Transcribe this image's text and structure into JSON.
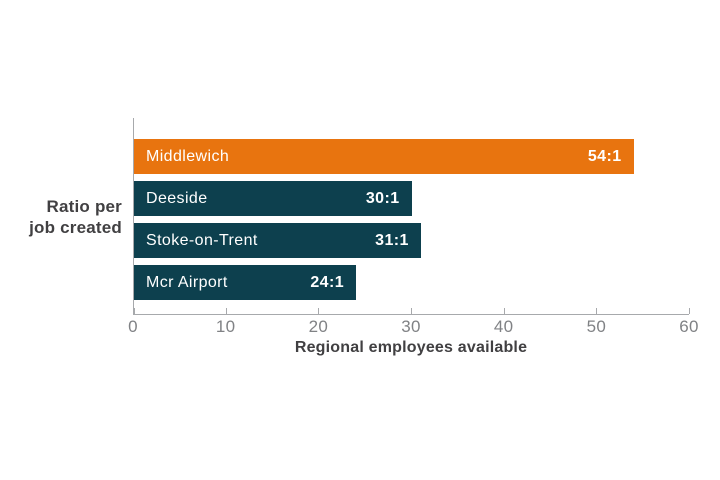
{
  "page": {
    "background": "#FFFFFF"
  },
  "colors": {
    "accent_orange": "#E8740F",
    "dark_teal": "#0D404E",
    "axis_line": "#A7A9AC",
    "tick_text": "#808285",
    "axis_title_text": "#414042",
    "bar_text": "#FFFFFF"
  },
  "chart_data": {
    "type": "bar",
    "orientation": "horizontal",
    "title": "",
    "categories": [
      "Middlewich",
      "Deeside",
      "Stoke-on-Trent",
      "Mcr Airport"
    ],
    "values": [
      54,
      30,
      31,
      24
    ],
    "value_labels": [
      "54:1",
      "30:1",
      "31:1",
      "24:1"
    ],
    "bar_colors": [
      "#E8740F",
      "#0D404E",
      "#0D404E",
      "#0D404E"
    ],
    "xlabel": "Regional employees available",
    "ylabel_lines": [
      "Ratio per",
      "job created"
    ],
    "xlim": [
      0,
      60
    ],
    "xticks": [
      0,
      10,
      20,
      30,
      40,
      50,
      60
    ],
    "grid": false,
    "legend": false
  }
}
